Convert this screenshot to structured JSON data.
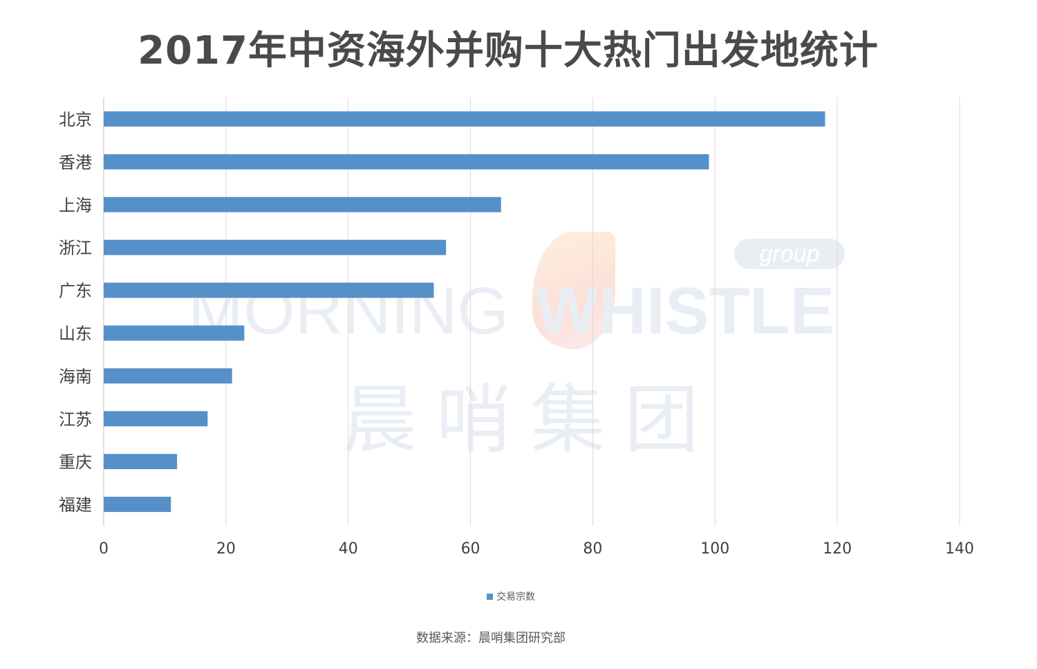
{
  "title": "2017年中资海外并购十大热门出发地统计",
  "watermark": {
    "word1": "MORNING",
    "word2": "WHISTLE",
    "tag": "group",
    "cn": "晨哨集团"
  },
  "source": "数据来源：晨哨集团研究部",
  "colors": {
    "bar": "#5690c8",
    "grid": "#d9d9d9",
    "text": "#404040"
  },
  "chart_data": {
    "type": "bar",
    "orientation": "horizontal",
    "title": "2017年中资海外并购十大热门出发地统计",
    "categories": [
      "北京",
      "香港",
      "上海",
      "浙江",
      "广东",
      "山东",
      "海南",
      "江苏",
      "重庆",
      "福建"
    ],
    "series": [
      {
        "name": "交易宗数",
        "values": [
          118,
          99,
          65,
          56,
          54,
          23,
          21,
          17,
          12,
          11
        ]
      }
    ],
    "xlim": [
      0,
      140
    ],
    "xticks": [
      0,
      20,
      40,
      60,
      80,
      100,
      120,
      140
    ],
    "grid": true,
    "legend": "bottom"
  }
}
